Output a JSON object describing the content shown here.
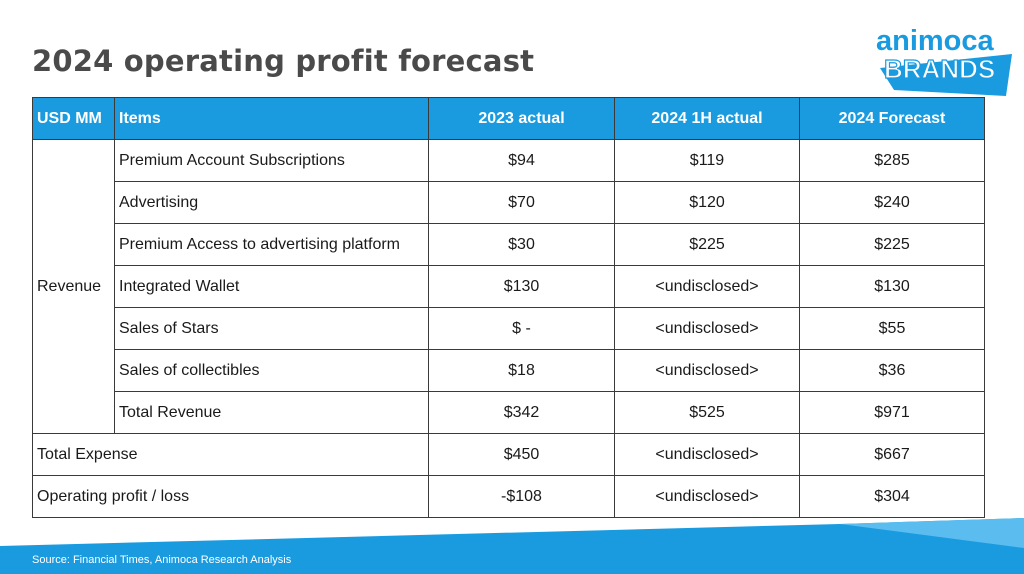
{
  "title": "2024 operating profit forecast",
  "logo": {
    "line1": "animoca",
    "line2": "BRANDS",
    "color": "#1a9be0"
  },
  "table": {
    "header": {
      "unit": "USD MM",
      "items": "Items",
      "col1": "2023 actual",
      "col2": "2024 1H actual",
      "col3": "2024 Forecast"
    },
    "revenue_group_label": "Revenue",
    "revenue_rows": [
      {
        "item": "Premium Account Subscriptions",
        "v2023": "$94",
        "v2024h1": "$119",
        "v2024f": "$285"
      },
      {
        "item": "Advertising",
        "v2023": "$70",
        "v2024h1": "$120",
        "v2024f": "$240"
      },
      {
        "item": "Premium Access to advertising platform",
        "v2023": "$30",
        "v2024h1": "$225",
        "v2024f": "$225"
      },
      {
        "item": "Integrated Wallet",
        "v2023": "$130",
        "v2024h1": "<undisclosed>",
        "v2024f": "$130"
      },
      {
        "item": "Sales of Stars",
        "v2023": "$ -",
        "v2024h1": "<undisclosed>",
        "v2024f": "$55"
      },
      {
        "item": "Sales of collectibles",
        "v2023": "$18",
        "v2024h1": "<undisclosed>",
        "v2024f": "$36"
      },
      {
        "item": "Total Revenue",
        "v2023": "$342",
        "v2024h1": "$525",
        "v2024f": "$971"
      }
    ],
    "summary_rows": [
      {
        "item": "Total Expense",
        "v2023": "$450",
        "v2024h1": "<undisclosed>",
        "v2024f": "$667"
      },
      {
        "item": "Operating profit / loss",
        "v2023": "-$108",
        "v2024h1": "<undisclosed>",
        "v2024f": "$304"
      }
    ]
  },
  "footer": {
    "source": "Source:  Financial Times, Animoca Research Analysis",
    "band_color": "#1a9be0"
  }
}
